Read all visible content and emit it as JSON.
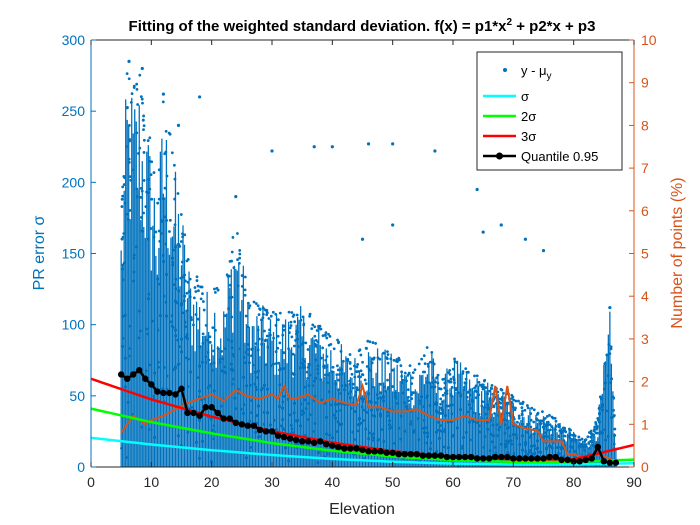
{
  "chart_data": {
    "type": "scatter",
    "title": "Fitting of the weighted standard deviation. f(x) = p1*x² + p2*x + p3",
    "title_parts": {
      "main": "Fitting of the weighted standard deviation. f(x) = p1*x",
      "sup": "2",
      "rest": " + p2*x + p3"
    },
    "xlabel": "Elevation",
    "ylabel_left": "PR error σ",
    "ylabel_right": "Number of points (%)",
    "xlim": [
      0,
      90
    ],
    "ylim_left": [
      0,
      300
    ],
    "ylim_right": [
      0,
      10
    ],
    "xticks": [
      "0",
      "10",
      "20",
      "30",
      "40",
      "50",
      "60",
      "70",
      "80",
      "90"
    ],
    "yticks_left": [
      "0",
      "50",
      "100",
      "150",
      "200",
      "250",
      "300"
    ],
    "yticks_right": [
      "0",
      "1",
      "2",
      "3",
      "4",
      "5",
      "6",
      "7",
      "8",
      "9",
      "10"
    ],
    "colors": {
      "scatter": "#0072BD",
      "left_axis": "#0072BD",
      "right_axis": "#D95319",
      "sigma": "#00FFFF",
      "two_sigma": "#00FF00",
      "three_sigma": "#FF0000",
      "quantile": "#000000",
      "percent_line": "#D95319"
    },
    "legend": {
      "position": "top-right",
      "entries": [
        {
          "id": "scatter",
          "label": "y - μ",
          "subscript": "y"
        },
        {
          "id": "sigma",
          "label": "σ"
        },
        {
          "id": "two_sigma",
          "label": "2σ"
        },
        {
          "id": "three_sigma",
          "label": "3σ"
        },
        {
          "id": "quantile",
          "label": "Quantile 0.95"
        }
      ]
    },
    "scatter_envelope": {
      "x": [
        5,
        6,
        7,
        8,
        9,
        10,
        11,
        12,
        13,
        14,
        15,
        16,
        17,
        18,
        19,
        20,
        22,
        24,
        26,
        28,
        30,
        32,
        34,
        36,
        38,
        40,
        42,
        44,
        46,
        48,
        50,
        52,
        54,
        56,
        58,
        60,
        62,
        64,
        66,
        68,
        70,
        72,
        74,
        76,
        78,
        80,
        82,
        84,
        86,
        87
      ],
      "y_max": [
        180,
        285,
        270,
        280,
        250,
        230,
        200,
        260,
        240,
        210,
        190,
        150,
        140,
        130,
        125,
        130,
        120,
        185,
        120,
        115,
        110,
        110,
        115,
        110,
        100,
        95,
        85,
        80,
        90,
        85,
        80,
        75,
        70,
        90,
        60,
        80,
        70,
        65,
        60,
        55,
        50,
        45,
        40,
        38,
        30,
        25,
        20,
        35,
        110,
        15
      ],
      "outliers": [
        {
          "x": 6.3,
          "y": 285
        },
        {
          "x": 8.5,
          "y": 280
        },
        {
          "x": 12,
          "y": 262
        },
        {
          "x": 14.5,
          "y": 240
        },
        {
          "x": 18,
          "y": 260
        },
        {
          "x": 24,
          "y": 190
        },
        {
          "x": 30,
          "y": 222
        },
        {
          "x": 37,
          "y": 225
        },
        {
          "x": 40,
          "y": 225
        },
        {
          "x": 46,
          "y": 227
        },
        {
          "x": 50,
          "y": 227
        },
        {
          "x": 57,
          "y": 222
        },
        {
          "x": 64,
          "y": 195
        },
        {
          "x": 65,
          "y": 165
        },
        {
          "x": 72,
          "y": 160
        },
        {
          "x": 75,
          "y": 152
        },
        {
          "x": 86,
          "y": 112
        },
        {
          "x": 68,
          "y": 170
        },
        {
          "x": 45,
          "y": 160
        },
        {
          "x": 50,
          "y": 170
        }
      ]
    },
    "series": [
      {
        "name": "σ",
        "x": [
          0,
          10,
          20,
          30,
          40,
          50,
          60,
          70,
          80,
          90
        ],
        "y": [
          20.5,
          15.8,
          11.8,
          8.4,
          5.7,
          3.7,
          2.4,
          1.8,
          1.8,
          2.6
        ]
      },
      {
        "name": "2σ",
        "x": [
          0,
          10,
          20,
          30,
          40,
          50,
          60,
          70,
          80,
          90
        ],
        "y": [
          41,
          31.5,
          23.6,
          16.8,
          11.4,
          7.4,
          4.8,
          3.6,
          3.6,
          5.2
        ]
      },
      {
        "name": "3σ",
        "x": [
          0,
          10,
          20,
          30,
          40,
          50,
          60,
          70,
          80,
          90
        ],
        "y": [
          62,
          47.5,
          35.4,
          25.2,
          17.1,
          11.1,
          7.2,
          5.4,
          5.4,
          15.5
        ]
      },
      {
        "name": "Quantile 0.95",
        "x": [
          5,
          6,
          7,
          8,
          9,
          10,
          11,
          12,
          13,
          14,
          15,
          16,
          17,
          18,
          19,
          20,
          21,
          22,
          23,
          24,
          25,
          26,
          27,
          28,
          29,
          30,
          31,
          32,
          33,
          34,
          35,
          36,
          37,
          38,
          39,
          40,
          41,
          42,
          43,
          44,
          45,
          46,
          47,
          48,
          49,
          50,
          51,
          52,
          53,
          54,
          55,
          56,
          57,
          58,
          59,
          60,
          61,
          62,
          63,
          64,
          65,
          66,
          67,
          68,
          69,
          70,
          71,
          72,
          73,
          74,
          75,
          76,
          77,
          78,
          79,
          80,
          81,
          82,
          83,
          84,
          85,
          86,
          87
        ],
        "y": [
          65,
          62,
          65,
          68,
          62,
          58,
          53,
          52,
          52,
          51,
          55,
          38,
          38,
          36,
          42,
          42,
          38,
          34,
          34,
          31,
          30,
          29,
          29,
          26,
          25,
          25,
          22,
          21,
          20,
          19,
          18,
          18,
          17,
          18,
          16,
          15,
          14,
          13,
          13,
          13,
          12,
          11,
          11,
          11,
          10,
          10,
          9,
          9,
          9,
          9,
          8,
          8,
          8,
          8,
          7,
          7,
          7,
          7,
          7,
          6,
          6,
          6,
          7,
          7,
          7,
          6,
          6,
          6,
          6,
          6,
          6,
          7,
          7,
          5,
          5,
          4,
          4,
          5,
          6,
          14,
          4,
          3,
          3
        ]
      },
      {
        "name": "Number of points (%)",
        "axis": "right",
        "x": [
          5,
          6,
          7,
          8,
          9,
          10,
          12,
          14,
          16,
          18,
          20,
          22,
          24,
          26,
          28,
          30,
          31,
          32,
          33,
          34,
          36,
          38,
          40,
          42,
          44,
          45,
          46,
          48,
          50,
          52,
          54,
          56,
          58,
          60,
          62,
          64,
          66,
          67,
          68,
          69,
          70,
          72,
          74,
          75,
          76,
          78,
          79,
          80,
          81,
          82,
          84,
          86,
          87
        ],
        "y": [
          0.8,
          1.0,
          1.2,
          1.1,
          1.0,
          1.1,
          1.2,
          1.35,
          1.5,
          1.6,
          1.7,
          1.55,
          1.8,
          1.65,
          1.6,
          1.7,
          1.6,
          1.9,
          1.6,
          1.6,
          1.7,
          1.5,
          1.6,
          1.5,
          1.45,
          1.9,
          1.4,
          1.4,
          1.3,
          1.3,
          1.35,
          1.2,
          1.1,
          1.1,
          1.2,
          1.1,
          1.1,
          1.9,
          1.0,
          1.9,
          1.0,
          0.9,
          0.85,
          0.6,
          0.6,
          0.6,
          0.3,
          0.3,
          0.25,
          0.25,
          0.3,
          0.2,
          0.1
        ]
      }
    ]
  }
}
